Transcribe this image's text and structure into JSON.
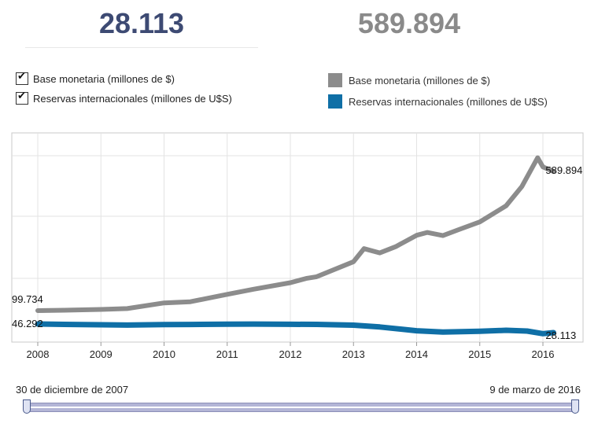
{
  "kpis": {
    "reservas_value": "28.113",
    "base_value": "589.894"
  },
  "filters": {
    "items": [
      {
        "label": "Base monetaria (millones de $)",
        "checked": true
      },
      {
        "label": "Reservas internacionales (millones de U$S)",
        "checked": true
      }
    ]
  },
  "legend": {
    "items": [
      {
        "label": "Base monetaria (millones de $)",
        "color": "#8c8c8c"
      },
      {
        "label": "Reservas internacionales (millones de U$S)",
        "color": "#0f6fa6"
      }
    ]
  },
  "slider": {
    "start_label": "30 de diciembre de 2007",
    "end_label": "9 de marzo de 2016"
  },
  "chart_data": {
    "type": "line",
    "x_ticks": [
      "2008",
      "2009",
      "2010",
      "2011",
      "2012",
      "2013",
      "2014",
      "2015",
      "2016"
    ],
    "xlim": [
      "2007-12-30",
      "2016-03-09"
    ],
    "grid": true,
    "series": [
      {
        "name": "Base monetaria (millones de $)",
        "color": "#8c8c8c",
        "start_label": "99.734",
        "end_label": "589.894",
        "points": [
          [
            "2008-01",
            99.734
          ],
          [
            "2008-06",
            101
          ],
          [
            "2009-01",
            104
          ],
          [
            "2009-06",
            107
          ],
          [
            "2010-01",
            127
          ],
          [
            "2010-06",
            131
          ],
          [
            "2011-01",
            157
          ],
          [
            "2011-06",
            175
          ],
          [
            "2012-01",
            198
          ],
          [
            "2012-04",
            213
          ],
          [
            "2012-06",
            219
          ],
          [
            "2013-01",
            272
          ],
          [
            "2013-03",
            318
          ],
          [
            "2013-06",
            303
          ],
          [
            "2013-09",
            325
          ],
          [
            "2014-01",
            365
          ],
          [
            "2014-03",
            375
          ],
          [
            "2014-06",
            364
          ],
          [
            "2014-09",
            385
          ],
          [
            "2015-01",
            412
          ],
          [
            "2015-06",
            469
          ],
          [
            "2015-09",
            537
          ],
          [
            "2015-12",
            638
          ],
          [
            "2016-01",
            606
          ],
          [
            "2016-03",
            589.894
          ]
        ]
      },
      {
        "name": "Reservas internacionales (millones de U$S)",
        "color": "#0f6fa6",
        "start_label": "46.292",
        "end_label": "28.113",
        "points": [
          [
            "2008-01",
            46.292
          ],
          [
            "2008-06",
            45.5
          ],
          [
            "2009-01",
            44.7
          ],
          [
            "2009-06",
            44.0
          ],
          [
            "2010-01",
            45.0
          ],
          [
            "2010-06",
            45.3
          ],
          [
            "2011-01",
            46.0
          ],
          [
            "2011-06",
            46.1
          ],
          [
            "2012-01",
            45.6
          ],
          [
            "2012-06",
            45.4
          ],
          [
            "2013-01",
            43.8
          ],
          [
            "2013-06",
            40.0
          ],
          [
            "2014-01",
            32.0
          ],
          [
            "2014-06",
            29.5
          ],
          [
            "2015-01",
            31.0
          ],
          [
            "2015-06",
            33.0
          ],
          [
            "2015-10",
            31.5
          ],
          [
            "2016-01",
            26.0
          ],
          [
            "2016-03",
            28.113
          ]
        ]
      }
    ]
  }
}
